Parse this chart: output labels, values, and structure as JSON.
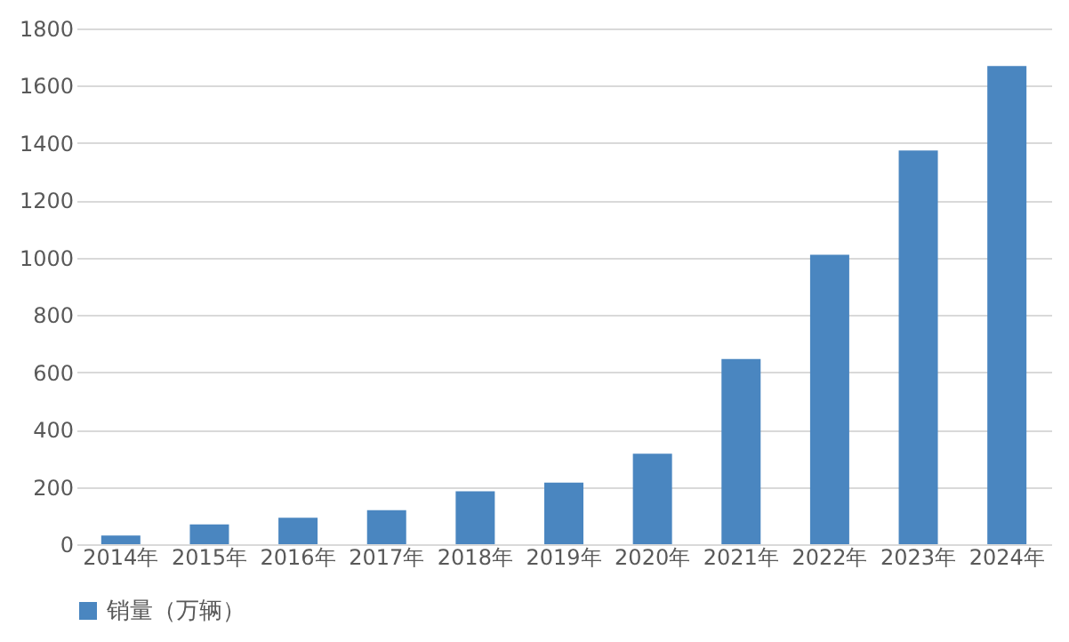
{
  "chart_data": {
    "type": "bar",
    "categories": [
      "2014年",
      "2015年",
      "2016年",
      "2017年",
      "2018年",
      "2019年",
      "2020年",
      "2021年",
      "2022年",
      "2023年",
      "2024年"
    ],
    "series": [
      {
        "name": "销量（万辆）",
        "color": "#4a86c0",
        "values": [
          30,
          69,
          92,
          119,
          185,
          215,
          316,
          646,
          1010,
          1374,
          1669
        ]
      }
    ],
    "ylim": [
      0,
      1800
    ],
    "yticks": [
      0,
      200,
      400,
      600,
      800,
      1000,
      1200,
      1400,
      1600,
      1800
    ],
    "grid": "y",
    "legend": "bottom"
  }
}
